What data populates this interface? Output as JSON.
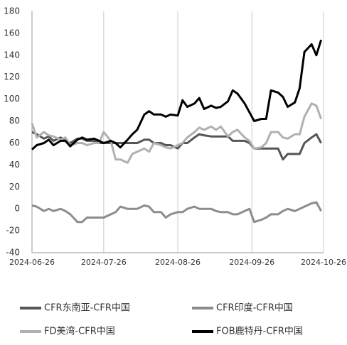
{
  "chart_data": {
    "type": "line",
    "x": [
      "2024-06-26",
      "2024-06-28",
      "2024-07-01",
      "2024-07-03",
      "2024-07-05",
      "2024-07-08",
      "2024-07-10",
      "2024-07-12",
      "2024-07-15",
      "2024-07-17",
      "2024-07-19",
      "2024-07-22",
      "2024-07-24",
      "2024-07-26",
      "2024-07-29",
      "2024-07-31",
      "2024-08-02",
      "2024-08-05",
      "2024-08-07",
      "2024-08-09",
      "2024-08-12",
      "2024-08-14",
      "2024-08-16",
      "2024-08-19",
      "2024-08-21",
      "2024-08-23",
      "2024-08-26",
      "2024-08-28",
      "2024-08-30",
      "2024-09-02",
      "2024-09-04",
      "2024-09-06",
      "2024-09-09",
      "2024-09-11",
      "2024-09-13",
      "2024-09-16",
      "2024-09-18",
      "2024-09-20",
      "2024-09-23",
      "2024-09-25",
      "2024-09-27",
      "2024-09-30",
      "2024-10-02",
      "2024-10-04",
      "2024-10-07",
      "2024-10-09",
      "2024-10-11",
      "2024-10-14",
      "2024-10-16",
      "2024-10-18",
      "2024-10-21",
      "2024-10-23",
      "2024-10-25"
    ],
    "series": [
      {
        "name": "CFR东南亚-CFR中国",
        "color": "#555555",
        "values": [
          70,
          68,
          64,
          66,
          62,
          65,
          62,
          60,
          64,
          64,
          62,
          62,
          60,
          60,
          60,
          60,
          60,
          60,
          60,
          60,
          63,
          63,
          60,
          60,
          58,
          58,
          55,
          60,
          60,
          65,
          68,
          67,
          66,
          66,
          66,
          66,
          62,
          62,
          62,
          60,
          55,
          55,
          55,
          55,
          55,
          45,
          50,
          50,
          50,
          60,
          65,
          68,
          60
        ]
      },
      {
        "name": "CFR印度-CFR中国",
        "color": "#8c8c8c",
        "values": [
          3,
          2,
          -2,
          0,
          -2,
          0,
          -2,
          -5,
          -12,
          -12,
          -8,
          -8,
          -8,
          -8,
          -5,
          -3,
          2,
          0,
          0,
          0,
          3,
          2,
          -3,
          -3,
          -8,
          -5,
          -3,
          -3,
          0,
          2,
          0,
          0,
          0,
          -2,
          -3,
          -3,
          -5,
          -5,
          -2,
          0,
          -12,
          -10,
          -8,
          -5,
          -5,
          -2,
          0,
          -2,
          0,
          2,
          5,
          6,
          -2
        ]
      },
      {
        "name": "FD美湾-CFR中国",
        "color": "#b0b0b0",
        "values": [
          78,
          65,
          70,
          67,
          66,
          63,
          65,
          58,
          60,
          60,
          58,
          60,
          60,
          70,
          62,
          45,
          45,
          42,
          50,
          52,
          55,
          52,
          60,
          58,
          56,
          55,
          58,
          60,
          65,
          70,
          74,
          72,
          75,
          72,
          75,
          66,
          70,
          72,
          65,
          62,
          55,
          56,
          60,
          70,
          70,
          65,
          64,
          68,
          68,
          84,
          96,
          94,
          82
        ]
      },
      {
        "name": "FOB鹿特丹-CFR中国",
        "color": "#000000",
        "values": [
          54,
          58,
          60,
          63,
          58,
          62,
          62,
          57,
          63,
          65,
          63,
          64,
          62,
          60,
          62,
          60,
          56,
          63,
          68,
          72,
          86,
          89,
          86,
          86,
          84,
          86,
          85,
          99,
          93,
          96,
          101,
          91,
          94,
          92,
          93,
          98,
          108,
          105,
          96,
          88,
          80,
          82,
          82,
          108,
          106,
          102,
          93,
          97,
          110,
          143,
          150,
          140,
          154
        ]
      }
    ],
    "xlim": [
      "2024-06-26",
      "2024-10-26"
    ],
    "xticks": [
      "2024-06-26",
      "2024-07-26",
      "2024-08-26",
      "2024-09-26",
      "2024-10-26"
    ],
    "ylim": [
      -40,
      180
    ],
    "yticks": [
      -40,
      -20,
      0,
      20,
      40,
      60,
      80,
      100,
      120,
      140,
      160,
      180
    ],
    "grid": "x",
    "legend": "bottom"
  }
}
